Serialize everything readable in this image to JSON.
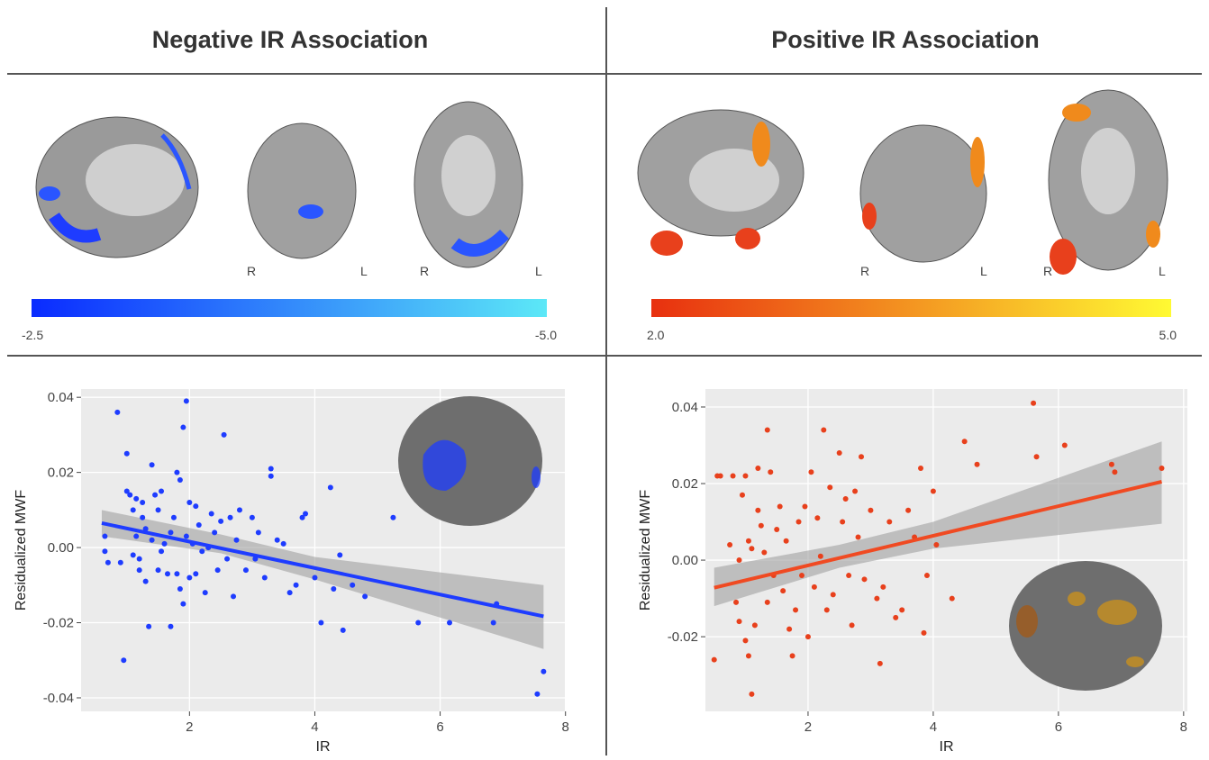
{
  "panels": [
    {
      "title": "Negative IR Association",
      "colorbar_labels": [
        "-2.5",
        "-5.0"
      ],
      "colorbar_colors": [
        "#0a2bff",
        "#5ce8f7"
      ],
      "orientation_labels": [
        "R",
        "L",
        "R",
        "L"
      ]
    },
    {
      "title": "Positive IR Association",
      "colorbar_labels": [
        "2.0",
        "5.0"
      ],
      "colorbar_colors": [
        "#e8300f",
        "#fffa33"
      ],
      "orientation_labels": [
        "R",
        "L",
        "R",
        "L"
      ]
    }
  ],
  "chart_data": [
    {
      "type": "scatter",
      "x_label": "IR",
      "y_label": "Residualized MWF",
      "color": "#1e3cff",
      "fit_color": "#1e3cff",
      "xlim": [
        0.27,
        7.99
      ],
      "ylim": [
        -0.0436,
        0.0422
      ],
      "xticks": [
        2,
        4,
        6,
        8
      ],
      "yticks": [
        0.04,
        0.02,
        {
          "value": 0,
          "label": "0.00"
        },
        -0.02,
        -0.04
      ],
      "grid": true,
      "x": [
        0.65,
        0.65,
        0.7,
        0.85,
        0.9,
        0.95,
        1.0,
        1.0,
        1.05,
        1.1,
        1.1,
        1.15,
        1.15,
        1.2,
        1.2,
        1.25,
        1.25,
        1.3,
        1.3,
        1.35,
        1.4,
        1.4,
        1.45,
        1.5,
        1.5,
        1.55,
        1.55,
        1.6,
        1.65,
        1.7,
        1.7,
        1.75,
        1.8,
        1.8,
        1.85,
        1.85,
        1.9,
        1.9,
        1.95,
        1.95,
        2.0,
        2.0,
        2.05,
        2.1,
        2.1,
        2.15,
        2.2,
        2.25,
        2.3,
        2.35,
        2.4,
        2.45,
        2.5,
        2.55,
        2.6,
        2.65,
        2.7,
        2.75,
        2.8,
        2.9,
        3.0,
        3.05,
        3.1,
        3.2,
        3.3,
        3.3,
        3.4,
        3.5,
        3.6,
        3.7,
        3.8,
        3.85,
        4.0,
        4.1,
        4.25,
        4.3,
        4.4,
        4.45,
        4.6,
        4.8,
        5.25,
        5.65,
        6.15,
        6.85,
        6.9,
        7.55,
        7.65
      ],
      "values": [
        0.003,
        -0.001,
        -0.004,
        0.036,
        -0.004,
        -0.03,
        0.025,
        0.015,
        0.014,
        0.01,
        -0.002,
        0.013,
        0.003,
        -0.006,
        -0.003,
        0.012,
        0.008,
        0.005,
        -0.009,
        -0.021,
        0.022,
        0.002,
        0.014,
        0.01,
        -0.006,
        0.015,
        -0.001,
        0.001,
        -0.007,
        -0.021,
        0.004,
        0.008,
        0.02,
        -0.007,
        0.018,
        -0.011,
        0.032,
        -0.015,
        0.039,
        0.003,
        -0.008,
        0.012,
        0.001,
        -0.007,
        0.011,
        0.006,
        -0.001,
        -0.012,
        0.0,
        0.009,
        0.004,
        -0.006,
        0.007,
        0.03,
        -0.003,
        0.008,
        -0.013,
        0.002,
        0.01,
        -0.006,
        0.008,
        -0.003,
        0.004,
        -0.008,
        0.021,
        0.019,
        0.002,
        0.001,
        -0.012,
        -0.01,
        0.008,
        0.009,
        -0.008,
        -0.02,
        0.016,
        -0.011,
        -0.002,
        -0.022,
        -0.01,
        -0.013,
        0.008,
        -0.02,
        -0.02,
        -0.02,
        -0.015,
        -0.039,
        -0.033
      ],
      "fit": {
        "x": [
          0.6,
          7.65
        ],
        "y": [
          0.0065,
          -0.0183
        ]
      },
      "band": {
        "x": [
          0.6,
          2.5,
          4,
          7.65
        ],
        "upper": [
          0.01,
          0.0035,
          -0.0025,
          -0.01
        ],
        "lower": [
          0.003,
          -0.0015,
          -0.0085,
          -0.027
        ]
      }
    },
    {
      "type": "scatter",
      "x_label": "IR",
      "y_label": "Residualized MWF",
      "color": "#e8401c",
      "fit_color": "#f04a22",
      "xlim": [
        0.36,
        8.06
      ],
      "ylim": [
        -0.0395,
        0.0447
      ],
      "xticks": [
        2,
        4,
        6,
        8
      ],
      "yticks": [
        0.04,
        0.02,
        {
          "value": 0,
          "label": "0.00"
        },
        -0.02
      ],
      "grid": true,
      "x": [
        0.5,
        0.55,
        0.6,
        0.75,
        0.8,
        0.85,
        0.9,
        0.9,
        0.95,
        1.0,
        1.0,
        1.05,
        1.05,
        1.1,
        1.1,
        1.15,
        1.2,
        1.2,
        1.25,
        1.3,
        1.35,
        1.35,
        1.4,
        1.45,
        1.5,
        1.55,
        1.6,
        1.65,
        1.7,
        1.75,
        1.8,
        1.85,
        1.9,
        1.95,
        2.0,
        2.05,
        2.1,
        2.15,
        2.2,
        2.25,
        2.3,
        2.35,
        2.4,
        2.5,
        2.55,
        2.6,
        2.65,
        2.7,
        2.75,
        2.8,
        2.85,
        2.9,
        3.0,
        3.1,
        3.15,
        3.2,
        3.3,
        3.4,
        3.5,
        3.6,
        3.7,
        3.8,
        3.85,
        3.9,
        4.0,
        4.05,
        4.3,
        4.5,
        4.7,
        5.6,
        5.65,
        6.1,
        6.85,
        6.9,
        7.65
      ],
      "values": [
        -0.026,
        0.022,
        0.022,
        0.004,
        0.022,
        -0.011,
        0.0,
        -0.016,
        0.017,
        0.022,
        -0.021,
        0.005,
        -0.025,
        0.003,
        -0.035,
        -0.017,
        0.013,
        0.024,
        0.009,
        0.002,
        0.034,
        -0.011,
        0.023,
        -0.004,
        0.008,
        0.014,
        -0.008,
        0.005,
        -0.018,
        -0.025,
        -0.013,
        0.01,
        -0.004,
        0.014,
        -0.02,
        0.023,
        -0.007,
        0.011,
        0.001,
        0.034,
        -0.013,
        0.019,
        -0.009,
        0.028,
        0.01,
        0.016,
        -0.004,
        -0.017,
        0.018,
        0.006,
        0.027,
        -0.005,
        0.013,
        -0.01,
        -0.027,
        -0.007,
        0.01,
        -0.015,
        -0.013,
        0.013,
        0.006,
        0.024,
        -0.019,
        -0.004,
        0.018,
        0.004,
        -0.01,
        0.031,
        0.025,
        0.041,
        0.027,
        0.03,
        0.025,
        0.023,
        0.024
      ],
      "fit": {
        "x": [
          0.5,
          7.65
        ],
        "y": [
          -0.0072,
          0.0205
        ]
      },
      "band": {
        "x": [
          0.5,
          2.5,
          4,
          7.65
        ],
        "upper": [
          -0.002,
          0.004,
          0.01,
          0.031
        ],
        "lower": [
          -0.012,
          -0.002,
          0.003,
          0.0095
        ]
      }
    }
  ]
}
